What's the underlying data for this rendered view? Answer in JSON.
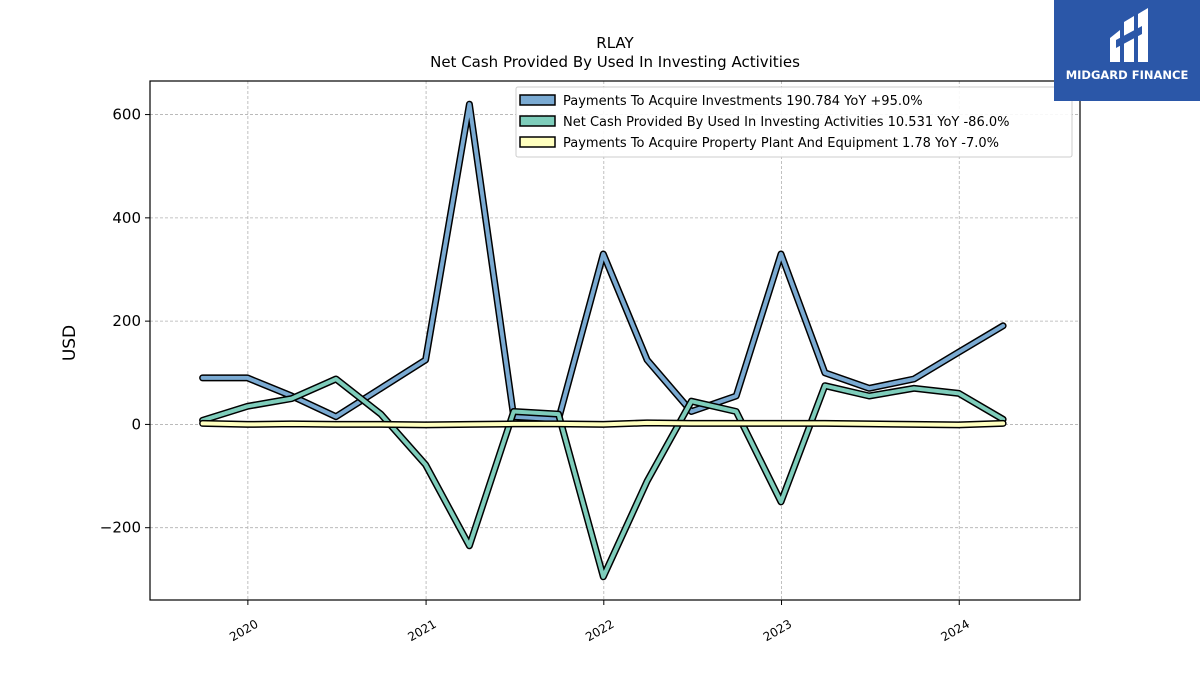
{
  "brand": {
    "name": "MIDGARD FINANCE",
    "bg_color": "#2b57a8",
    "icon": "midgard-logo-icon"
  },
  "chart_data": {
    "type": "line",
    "title": "RLAY",
    "subtitle": "Net Cash Provided By Used In Investing Activities",
    "xlabel": "",
    "ylabel": "USD",
    "ylim": [
      -340,
      665
    ],
    "xlim": [
      "2019-06-14",
      "2024-09-05"
    ],
    "yticks": [
      -200,
      0,
      200,
      400,
      600
    ],
    "ytick_labels": [
      "−200",
      "0",
      "200",
      "400",
      "600"
    ],
    "xticks": [
      "2020-01-01",
      "2021-01-01",
      "2022-01-01",
      "2023-01-01",
      "2024-01-01"
    ],
    "xtick_labels": [
      "2020",
      "2021",
      "2022",
      "2023",
      "2024"
    ],
    "grid": true,
    "legend_position": "top-right",
    "x": [
      "2019-09-30",
      "2019-12-31",
      "2020-03-31",
      "2020-06-30",
      "2020-09-30",
      "2020-12-31",
      "2021-03-31",
      "2021-06-30",
      "2021-09-30",
      "2021-12-31",
      "2022-03-31",
      "2022-06-30",
      "2022-09-30",
      "2022-12-31",
      "2023-03-31",
      "2023-06-30",
      "2023-09-30",
      "2023-12-31",
      "2024-03-31"
    ],
    "series": [
      {
        "name": "Payments To Acquire Investments  190.784 YoY +95.0%",
        "color": "#7aaad2",
        "values": [
          90,
          90,
          55,
          15,
          70,
          125,
          620,
          15,
          10,
          330,
          125,
          25,
          55,
          330,
          100,
          70,
          88,
          140,
          191
        ]
      },
      {
        "name": "Net Cash Provided By Used In Investing Activities  10.531 YoY -86.0%",
        "color": "#7ecdbb",
        "values": [
          8,
          35,
          50,
          88,
          20,
          -78,
          -235,
          25,
          20,
          -295,
          -110,
          45,
          25,
          -150,
          75,
          55,
          70,
          60,
          10
        ]
      },
      {
        "name": "Payments To Acquire Property Plant And Equipment  1.78 YoY -7.0%",
        "color": "#ffffbf",
        "values": [
          2,
          0,
          1,
          0,
          0,
          -1,
          0,
          1,
          1,
          0,
          3,
          2,
          2,
          2,
          2,
          1,
          0,
          -1,
          2
        ]
      }
    ]
  }
}
